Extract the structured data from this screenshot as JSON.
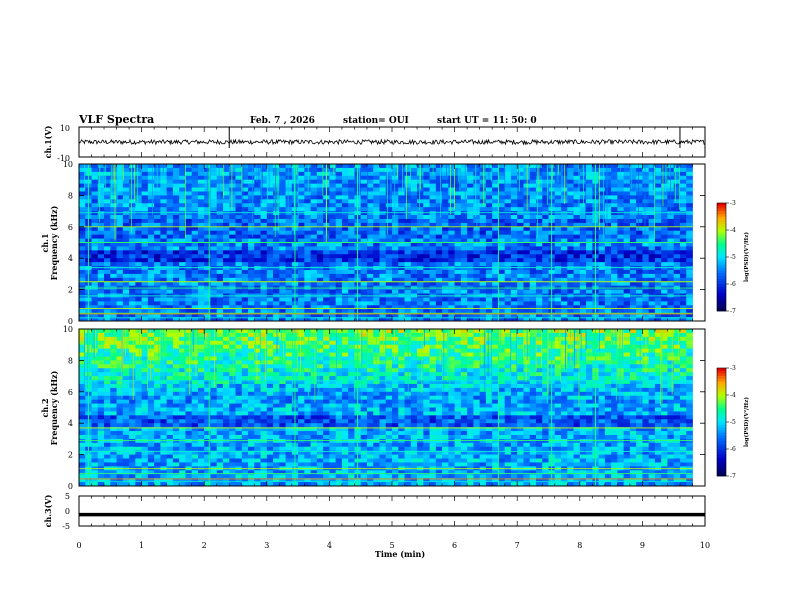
{
  "header": {
    "title": "VLF Spectra",
    "date": "Feb. 7 , 2026",
    "station": "station= OUI",
    "start": "start UT = 11: 50: 0"
  },
  "chart_data": [
    {
      "type": "line",
      "name": "ch1-waveform",
      "ylabel": "ch.1(V)",
      "yticks": [
        "10",
        "-10"
      ],
      "ylim": [
        -10,
        10
      ],
      "xlim": [
        0,
        10
      ],
      "baseline": 0,
      "noise_amplitude": 1.5,
      "spikes_min": [
        2.4,
        9.6
      ]
    },
    {
      "type": "heatmap",
      "name": "ch1-spectrogram",
      "ylabel_top": "ch.1",
      "ylabel": "Frequency (kHz)",
      "yticks": [
        "0",
        "2",
        "4",
        "6",
        "8",
        "10"
      ],
      "ylim": [
        0,
        10
      ],
      "xlim": [
        0,
        9.8
      ],
      "colorbar": {
        "label": "log(PSD)(V²/Hz)",
        "ticks": [
          "-3",
          "-4",
          "-5",
          "-6",
          "-7"
        ],
        "range": [
          -7,
          -3
        ]
      },
      "tones_khz": [
        0.2,
        0.5,
        0.8,
        1.6,
        2.1,
        2.5,
        3.4,
        5.0,
        6.0,
        6.9
      ],
      "spheric_times_min": [
        0.15,
        2.08,
        3.45,
        4.45,
        6.7,
        7.55,
        8.25
      ]
    },
    {
      "type": "heatmap",
      "name": "ch2-spectrogram",
      "ylabel_top": "ch.2",
      "ylabel": "Frequency (kHz)",
      "yticks": [
        "0",
        "2",
        "4",
        "6",
        "8",
        "10"
      ],
      "ylim": [
        0,
        10
      ],
      "xlim": [
        0,
        9.8
      ],
      "colorbar": {
        "label": "log(PSD)(V²/Hz)",
        "ticks": [
          "-3",
          "-4",
          "-5",
          "-6",
          "-7"
        ],
        "range": [
          -7,
          -3
        ]
      },
      "tones_khz": [
        0.3,
        0.8,
        1.1,
        2.2,
        2.9,
        3.7,
        6.7
      ],
      "spheric_times_min": [
        0.15,
        2.08,
        3.45,
        4.45,
        6.7,
        7.55,
        8.25
      ]
    },
    {
      "type": "line",
      "name": "ch3-waveform",
      "ylabel": "ch.3(V)",
      "yticks": [
        "5",
        "0",
        "-5"
      ],
      "ylim": [
        -5,
        5
      ],
      "xlim": [
        0,
        10
      ],
      "baseline": -1.2
    }
  ],
  "xaxis": {
    "label": "Time (min)",
    "ticks": [
      "0",
      "1",
      "2",
      "3",
      "4",
      "5",
      "6",
      "7",
      "8",
      "9",
      "10"
    ],
    "range": [
      0,
      10
    ]
  },
  "colors": {
    "low": "#00007f",
    "mid": "#00c0ff",
    "high": "#00ff80",
    "peak": "#ff0000"
  }
}
